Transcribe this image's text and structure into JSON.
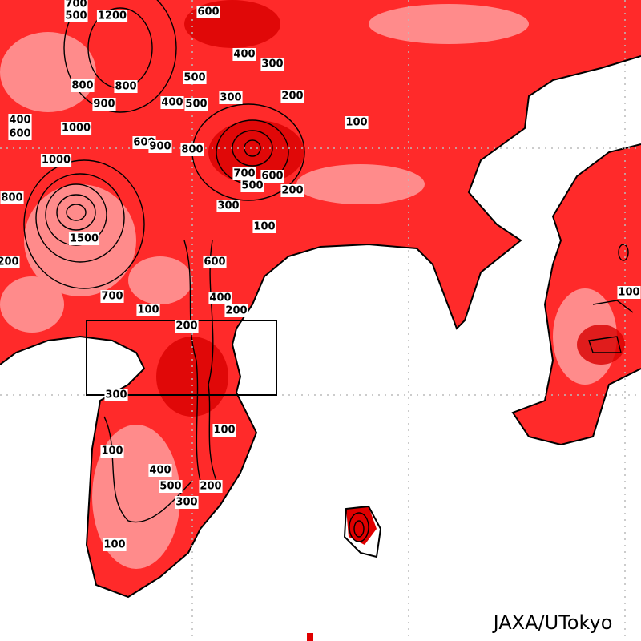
{
  "map": {
    "contour_labels": [
      "700",
      "500",
      "1200",
      "600",
      "400",
      "300",
      "500",
      "800",
      "800",
      "900",
      "400",
      "500",
      "300",
      "200",
      "100",
      "400",
      "600",
      "1000",
      "600",
      "900",
      "800",
      "1000",
      "700",
      "600",
      "500",
      "200",
      "800",
      "300",
      "100",
      "1500",
      "200",
      "600",
      "700",
      "100",
      "400",
      "200",
      "200",
      "300",
      "100",
      "100",
      "400",
      "200",
      "500",
      "300",
      "100",
      "100"
    ],
    "credit": "JAXA/UTokyo"
  }
}
